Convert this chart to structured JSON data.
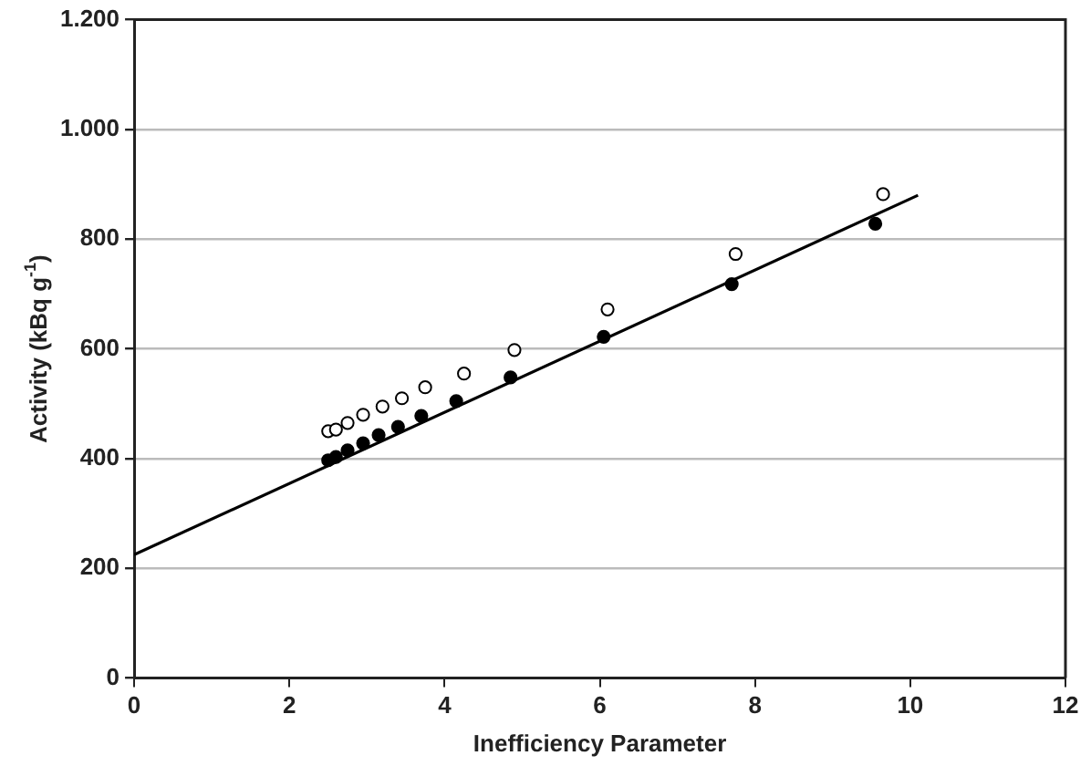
{
  "chart_data": {
    "type": "scatter",
    "xlabel": "Inefficiency Parameter",
    "ylabel": "Activity (kBq g$^{-1}$)",
    "xlim": [
      0,
      12
    ],
    "xticks": [
      0,
      2,
      4,
      6,
      8,
      10,
      12
    ],
    "ylim": [
      0,
      1200
    ],
    "yticks": [
      0,
      200,
      400,
      600,
      800,
      {
        "value": 1000,
        "label": "1.000"
      },
      {
        "value": 1200,
        "label": "1.200"
      }
    ],
    "grid": "y",
    "legend": false,
    "series": [
      {
        "type": "scatter",
        "marker": "circle",
        "color": "#ffffff",
        "x": [
          2.5,
          2.6,
          2.75,
          2.95,
          3.2,
          3.45,
          3.75,
          4.25,
          4.9,
          6.1,
          7.75,
          9.65
        ],
        "values": [
          450,
          453,
          465,
          480,
          495,
          510,
          530,
          555,
          598,
          672,
          773,
          882
        ]
      },
      {
        "type": "scatter",
        "marker": "circle",
        "color": "#000000",
        "x": [
          2.5,
          2.6,
          2.75,
          2.95,
          3.15,
          3.4,
          3.7,
          4.15,
          4.85,
          6.05,
          7.7,
          9.55
        ],
        "values": [
          397,
          403,
          415,
          428,
          443,
          458,
          478,
          505,
          548,
          622,
          718,
          828
        ]
      },
      {
        "type": "line",
        "marker": "none",
        "line_style": "solid",
        "color": "#000000",
        "x": [
          0,
          10.1
        ],
        "values": [
          225,
          880
        ]
      }
    ]
  }
}
